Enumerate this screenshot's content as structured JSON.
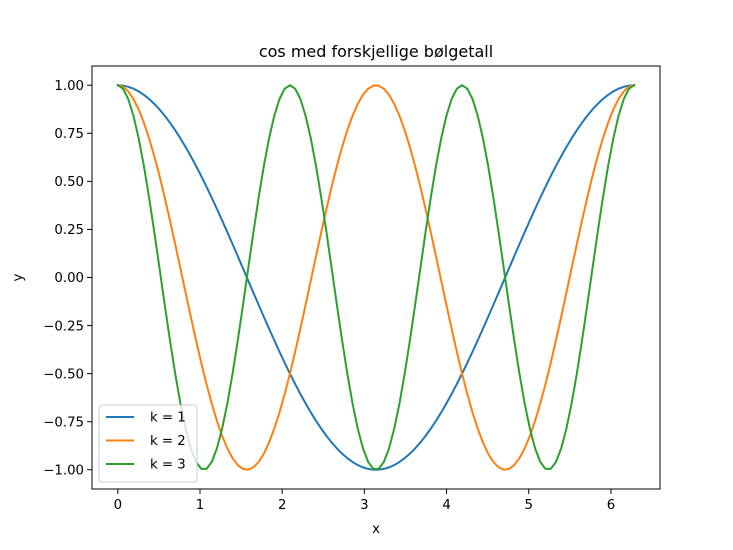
{
  "chart_data": {
    "type": "line",
    "title": "cos med forskjellige bølgetall",
    "xlabel": "x",
    "ylabel": "y",
    "xlim": [
      -0.314,
      6.597
    ],
    "ylim": [
      -1.1,
      1.1
    ],
    "xticks": [
      0,
      1,
      2,
      3,
      4,
      5,
      6
    ],
    "xtick_labels": [
      "0",
      "1",
      "2",
      "3",
      "4",
      "5",
      "6"
    ],
    "yticks": [
      1.0,
      0.75,
      0.5,
      0.25,
      0.0,
      -0.25,
      -0.5,
      -0.75,
      -1.0
    ],
    "ytick_labels": [
      "1.00",
      "0.75",
      "0.50",
      "0.25",
      "0.00",
      "−0.25",
      "−0.50",
      "−0.75",
      "−1.00"
    ],
    "x_range": [
      0,
      6.2832
    ],
    "num_points": 100,
    "series": [
      {
        "name": "k = 1",
        "function": "cos(1x)",
        "k": 1,
        "color": "#1f77b4"
      },
      {
        "name": "k = 2",
        "function": "cos(2x)",
        "k": 2,
        "color": "#ff7f0e"
      },
      {
        "name": "k = 3",
        "function": "cos(3x)",
        "k": 3,
        "color": "#2ca02c"
      }
    ],
    "legend": "lower-left",
    "grid": false
  }
}
